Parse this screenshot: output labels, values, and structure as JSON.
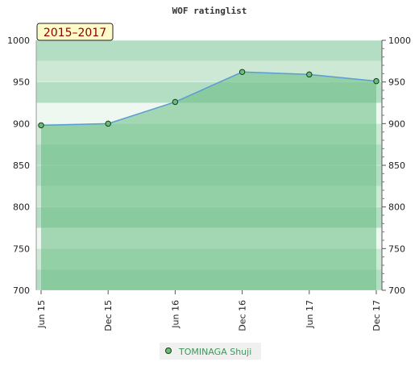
{
  "chart_data": {
    "type": "area",
    "title": "WOF ratinglist",
    "period_label": "2015–2017",
    "categories": [
      "Jun 15",
      "Dec 15",
      "Jun 16",
      "Dec 16",
      "Jun 17",
      "Dec 17"
    ],
    "series": [
      {
        "name": "TOMINAGA Shuji",
        "values": [
          898,
          900,
          926,
          962,
          959,
          951
        ]
      }
    ],
    "ylim": [
      700,
      1000
    ],
    "y_ticks": [
      700,
      750,
      800,
      850,
      900,
      950,
      1000
    ],
    "xlabel": "",
    "ylabel": "",
    "grid": true,
    "legend_position": "bottom",
    "colors": {
      "line": "#5b9bd5",
      "area": "#66bb80",
      "marker_fill": "#66c07a",
      "marker_stroke": "#1a3a1a",
      "band_light_top": "#b3dec3",
      "band_mid_top": "#cde9d6",
      "band_pale_top": "#eef8f1",
      "badge_fill": "#fffbc8",
      "badge_text": "#8a0000",
      "legend_text": "#3a9a5a"
    }
  }
}
